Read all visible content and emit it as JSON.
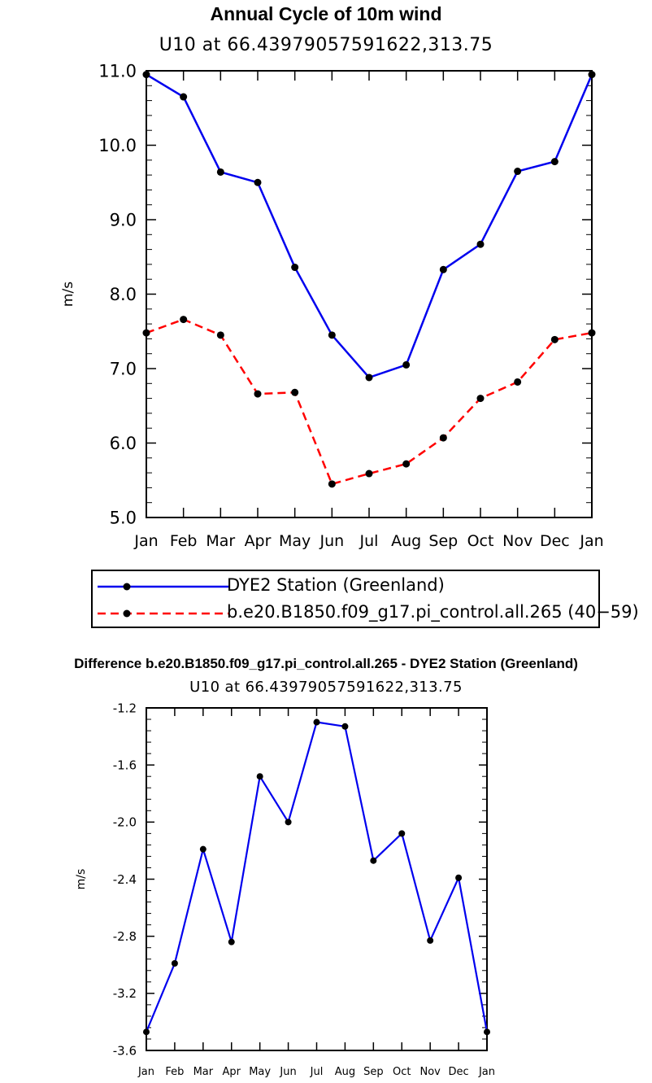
{
  "chart_data": [
    {
      "type": "line",
      "title": "Annual Cycle of 10m wind",
      "subtitle": "U10 at 66.43979057591622,313.75",
      "ylabel": "m/s",
      "categories": [
        "Jan",
        "Feb",
        "Mar",
        "Apr",
        "May",
        "Jun",
        "Jul",
        "Aug",
        "Sep",
        "Oct",
        "Nov",
        "Dec",
        "Jan"
      ],
      "ylim": [
        5.0,
        11.0
      ],
      "yticks": [
        "5.0",
        "6.0",
        "7.0",
        "8.0",
        "9.0",
        "10.0",
        "11.0"
      ],
      "series": [
        {
          "name": "DYE2 Station (Greenland)",
          "color": "#0000ee",
          "dash": "solid",
          "values": [
            10.95,
            10.65,
            9.64,
            9.5,
            8.36,
            7.45,
            6.88,
            7.05,
            8.33,
            8.67,
            9.65,
            9.78,
            10.95
          ]
        },
        {
          "name": "b.e20.B1850.f09_g17.pi_control.all.265 (40−59)",
          "color": "#ff0000",
          "dash": "dashed",
          "values": [
            7.48,
            7.66,
            7.45,
            6.66,
            6.68,
            5.45,
            5.59,
            5.72,
            6.07,
            6.6,
            6.82,
            7.39,
            7.48
          ]
        }
      ],
      "legend": "bottom"
    },
    {
      "type": "line",
      "title": "Difference b.e20.B1850.f09_g17.pi_control.all.265 - DYE2 Station (Greenland)",
      "subtitle": "U10 at 66.43979057591622,313.75",
      "ylabel": "m/s",
      "categories": [
        "Jan",
        "Feb",
        "Mar",
        "Apr",
        "May",
        "Jun",
        "Jul",
        "Aug",
        "Sep",
        "Oct",
        "Nov",
        "Dec",
        "Jan"
      ],
      "ylim": [
        -3.6,
        -1.2
      ],
      "yticks": [
        "-3.6",
        "-3.2",
        "-2.8",
        "-2.4",
        "-2.0",
        "-1.6",
        "-1.2"
      ],
      "series": [
        {
          "color": "#0000ee",
          "dash": "solid",
          "values": [
            -3.47,
            -2.99,
            -2.19,
            -2.84,
            -1.68,
            -2.0,
            -1.3,
            -1.33,
            -2.27,
            -2.08,
            -2.83,
            -2.39,
            -3.47
          ]
        }
      ]
    }
  ]
}
